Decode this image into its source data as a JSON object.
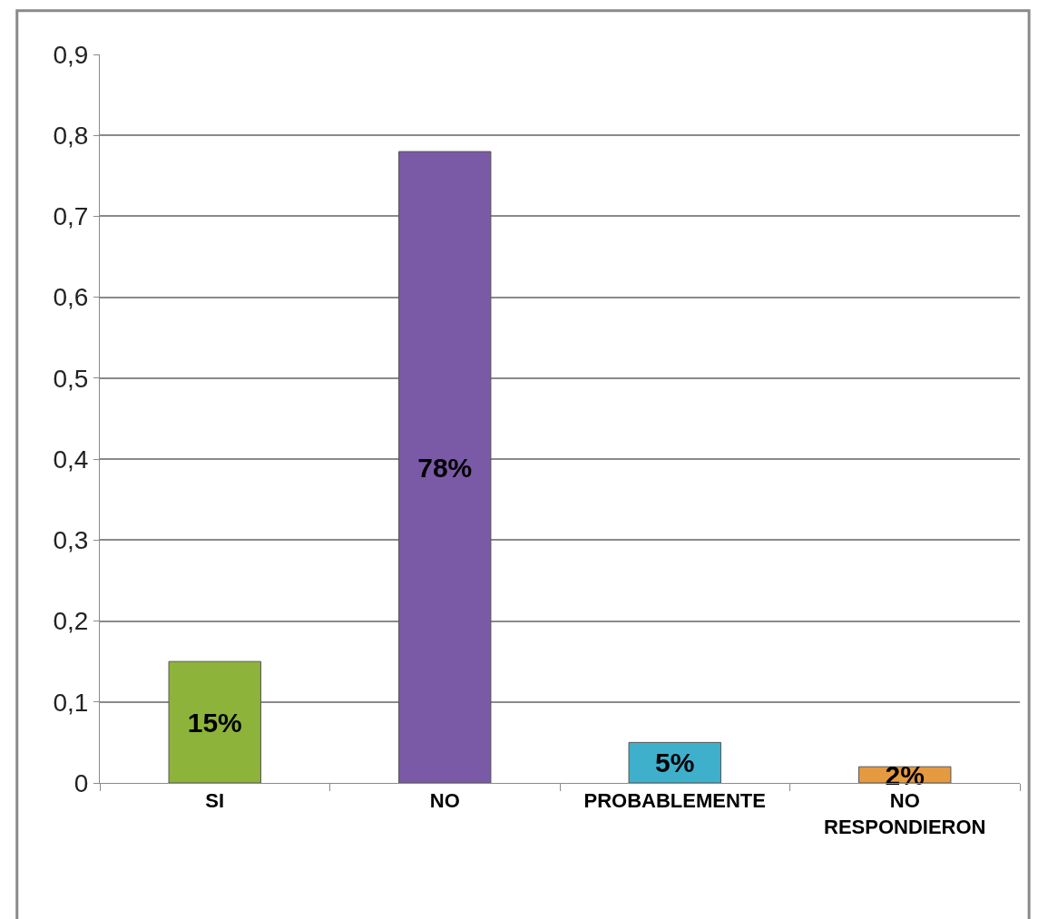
{
  "chart_data": {
    "type": "bar",
    "categories": [
      "SI",
      "NO",
      "PROBABLEMENTE",
      "NO RESPONDIERON"
    ],
    "values": [
      0.15,
      0.78,
      0.05,
      0.02
    ],
    "colors": [
      "#8db33a",
      "#7a5aa6",
      "#3fb0cc",
      "#e69a40"
    ],
    "value_labels": [
      "15%",
      "78%",
      "5%",
      "2%"
    ],
    "ylim": [
      0,
      0.9
    ],
    "yticks": [
      0,
      {
        "value": 0.1,
        "label": "0,1"
      },
      {
        "value": 0.2,
        "label": "0,2"
      },
      {
        "value": 0.3,
        "label": "0,3"
      },
      {
        "value": 0.4,
        "label": "0,4"
      },
      {
        "value": 0.5,
        "label": "0,5"
      },
      {
        "value": 0.6,
        "label": "0,6"
      },
      {
        "value": 0.7,
        "label": "0,7"
      },
      {
        "value": 0.8,
        "label": "0,8"
      },
      {
        "value": 0.9,
        "label": "0,9"
      }
    ],
    "grid": "y"
  }
}
